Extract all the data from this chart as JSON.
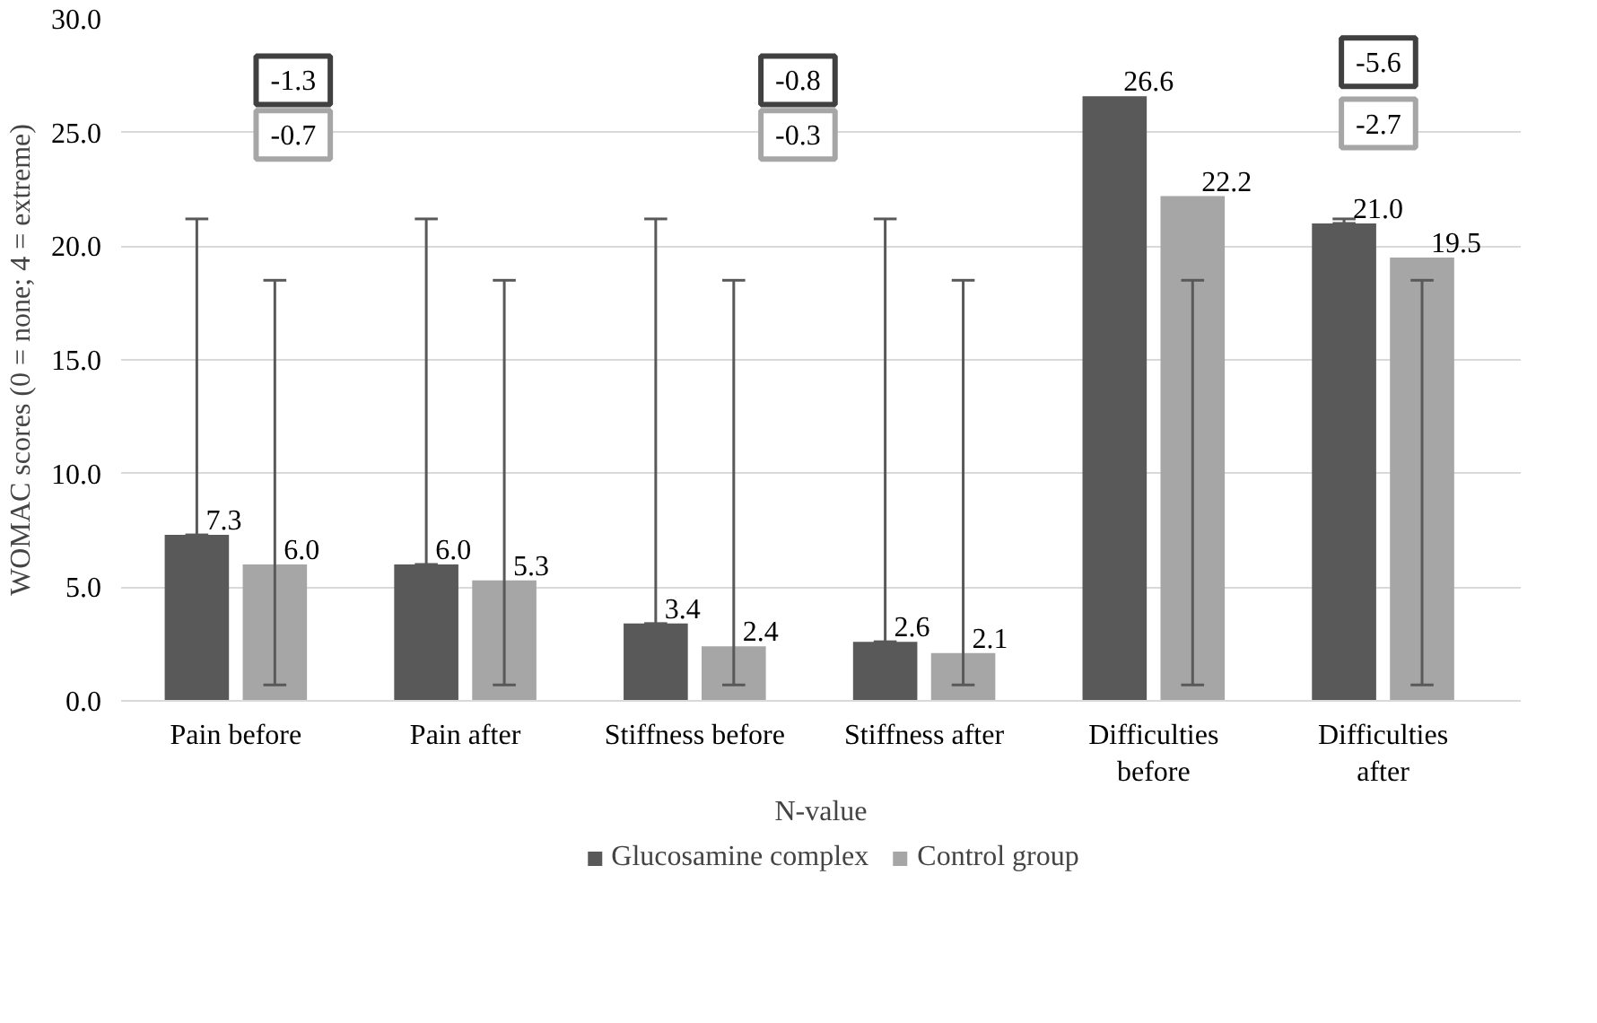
{
  "chart_data": {
    "type": "bar",
    "ylabel": "WOMAC scores (0 = none; 4 = extreme)",
    "xlabel": "N-value",
    "categories": [
      "Pain before",
      "Pain after",
      "Stiffness before",
      "Stiffness after",
      "Difficulties before",
      "Difficulties after"
    ],
    "series": [
      {
        "name": "Glucosamine complex",
        "color": "#595959",
        "values": [
          7.3,
          6.0,
          3.4,
          2.6,
          26.6,
          21.0
        ],
        "value_labels": [
          "7.3",
          "6.0",
          "3.4",
          "2.6",
          "26.6",
          "21.0"
        ],
        "errors": [
          [
            7.3,
            21.2
          ],
          [
            6.0,
            21.2
          ],
          [
            3.4,
            21.2
          ],
          [
            2.6,
            21.2
          ],
          null,
          [
            21.0,
            21.2
          ]
        ]
      },
      {
        "name": "Control group",
        "color": "#a6a6a6",
        "values": [
          6.0,
          5.3,
          2.4,
          2.1,
          22.2,
          19.5
        ],
        "value_labels": [
          "6.0",
          "5.3",
          "2.4",
          "2.1",
          "22.2",
          "19.5"
        ],
        "errors": [
          [
            0.7,
            18.5
          ],
          [
            0.7,
            18.5
          ],
          [
            0.7,
            18.5
          ],
          [
            0.7,
            18.5
          ],
          [
            0.7,
            18.5
          ],
          [
            0.7,
            18.5
          ]
        ]
      }
    ],
    "annotations": [
      "-1.3",
      "-0.7",
      "-0.8",
      "-0.3",
      "-5.6",
      "-2.7"
    ],
    "ylim": [
      0,
      30
    ],
    "yticks": [
      {
        "value": 0,
        "label": "0.0"
      },
      {
        "value": 5,
        "label": "5.0"
      },
      {
        "value": 10,
        "label": "10.0"
      },
      {
        "value": 15,
        "label": "15.0"
      },
      {
        "value": 20,
        "label": "20.0"
      },
      {
        "value": 25,
        "label": "25.0"
      },
      {
        "value": 30,
        "label": "30.0"
      }
    ],
    "grid": "y",
    "legend": "bottom"
  }
}
